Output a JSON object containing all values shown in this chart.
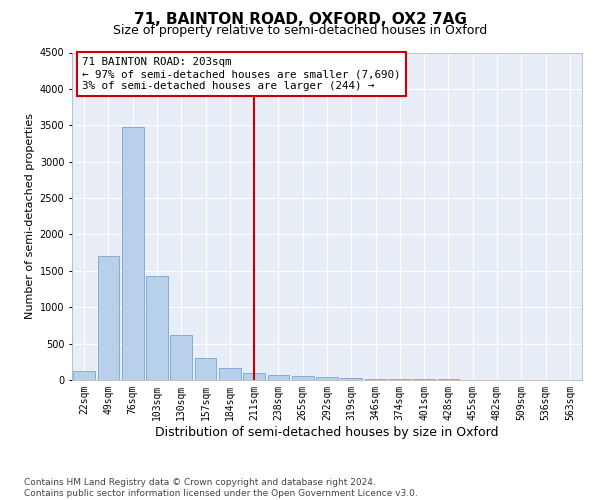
{
  "title": "71, BAINTON ROAD, OXFORD, OX2 7AG",
  "subtitle": "Size of property relative to semi-detached houses in Oxford",
  "xlabel": "Distribution of semi-detached houses by size in Oxford",
  "ylabel": "Number of semi-detached properties",
  "bar_color": "#b8d0ea",
  "bar_edge_color": "#6699cc",
  "categories": [
    "22sqm",
    "49sqm",
    "76sqm",
    "103sqm",
    "130sqm",
    "157sqm",
    "184sqm",
    "211sqm",
    "238sqm",
    "265sqm",
    "292sqm",
    "319sqm",
    "346sqm",
    "374sqm",
    "401sqm",
    "428sqm",
    "455sqm",
    "482sqm",
    "509sqm",
    "536sqm",
    "563sqm"
  ],
  "values": [
    130,
    1700,
    3480,
    1430,
    620,
    300,
    170,
    100,
    75,
    55,
    40,
    30,
    20,
    15,
    12,
    8,
    6,
    5,
    4,
    3,
    3
  ],
  "ylim": [
    0,
    4500
  ],
  "yticks": [
    0,
    500,
    1000,
    1500,
    2000,
    2500,
    3000,
    3500,
    4000,
    4500
  ],
  "vline_x": 7,
  "vline_color": "#cc0000",
  "annotation_title": "71 BAINTON ROAD: 203sqm",
  "annotation_line1": "← 97% of semi-detached houses are smaller (7,690)",
  "annotation_line2": "3% of semi-detached houses are larger (244) →",
  "annotation_box_color": "#ffffff",
  "annotation_box_edge": "#cc0000",
  "footer1": "Contains HM Land Registry data © Crown copyright and database right 2024.",
  "footer2": "Contains public sector information licensed under the Open Government Licence v3.0.",
  "bg_color": "#e8eef8",
  "grid_color": "#ffffff",
  "title_fontsize": 11,
  "subtitle_fontsize": 9,
  "axis_label_fontsize": 8,
  "tick_fontsize": 7,
  "footer_fontsize": 6.5
}
